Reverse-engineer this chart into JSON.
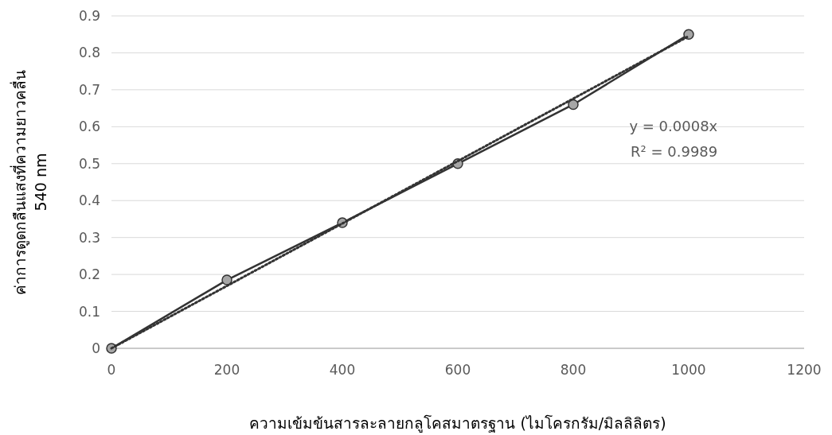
{
  "chart_data": {
    "type": "line",
    "xlabel": "ความเข้มข้นสารละลายกลูโคสมาตรฐาน (ไมโครกรัม/มิลลิลิตร)",
    "ylabel": "ค่าการดูดกลืนแสงที่ความยาวคลื่น\n540 nm",
    "x": [
      0,
      200,
      400,
      600,
      800,
      1000
    ],
    "series": [
      {
        "color": "#333333",
        "values": [
          0,
          0.185,
          0.34,
          0.5,
          0.66,
          0.85
        ],
        "marker": "circle",
        "line_style": "solid"
      },
      {
        "type": "line",
        "color": "#333333",
        "x": [
          0,
          1000
        ],
        "values": [
          0,
          0.845
        ],
        "marker": "none",
        "line_style": "dotted"
      }
    ],
    "xlim": [
      0,
      1200
    ],
    "ylim": [
      0,
      0.9
    ],
    "xticks": [
      0,
      200,
      400,
      600,
      800,
      1000,
      1200
    ],
    "yticks": [
      0,
      0.1,
      0.2,
      0.3,
      0.4,
      0.5,
      0.6,
      0.7,
      0.8,
      0.9
    ],
    "grid": "y",
    "annotations": [
      "y = 0.0008x",
      "R² = 0.9989"
    ]
  }
}
